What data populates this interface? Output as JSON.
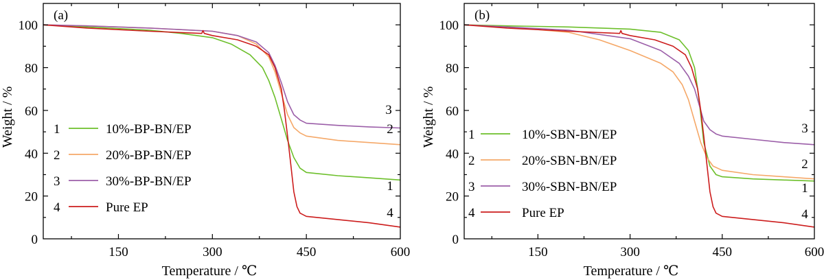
{
  "chart_data": [
    {
      "type": "line",
      "panel_label": "(a)",
      "xlabel": "Temperature / ℃",
      "ylabel": "Weight / %",
      "xlim": [
        30,
        600
      ],
      "ylim": [
        0,
        110
      ],
      "xticks": [
        150,
        300,
        450,
        600
      ],
      "yticks": [
        0,
        20,
        40,
        60,
        80,
        100
      ],
      "grid": false,
      "legend_position": "lower-left",
      "series": [
        {
          "number": "1",
          "name": "10%-BP-BN/EP",
          "color": "#6cbf2a",
          "end_label": "1",
          "x": [
            30,
            100,
            200,
            250,
            300,
            330,
            360,
            380,
            390,
            400,
            410,
            420,
            430,
            440,
            450,
            500,
            550,
            600
          ],
          "y": [
            100,
            99,
            97.5,
            96,
            94,
            91,
            86,
            80,
            74,
            66,
            56,
            46,
            38,
            33,
            31,
            29.5,
            28.5,
            27.5
          ]
        },
        {
          "number": "2",
          "name": "20%-BP-BN/EP",
          "color": "#f5a868",
          "end_label": "2",
          "x": [
            30,
            100,
            200,
            300,
            340,
            370,
            390,
            400,
            410,
            420,
            430,
            440,
            450,
            500,
            550,
            600
          ],
          "y": [
            100,
            99.5,
            98.5,
            97,
            95,
            91,
            85,
            78,
            68,
            58,
            52,
            49.5,
            48,
            46,
            45,
            44
          ]
        },
        {
          "number": "3",
          "name": "30%-BP-BN/EP",
          "color": "#9b5ea8",
          "end_label": "3",
          "x": [
            30,
            100,
            200,
            300,
            340,
            370,
            390,
            400,
            410,
            420,
            430,
            440,
            450,
            500,
            550,
            600
          ],
          "y": [
            100,
            99.5,
            98.5,
            97,
            95,
            92,
            87,
            81,
            73,
            64,
            58,
            55.5,
            54,
            53,
            52.3,
            51.8
          ]
        },
        {
          "number": "4",
          "name": "Pure EP",
          "color": "#cc1c1c",
          "end_label": "4",
          "x": [
            30,
            100,
            200,
            283,
            285,
            287,
            300,
            340,
            370,
            390,
            400,
            410,
            415,
            420,
            425,
            430,
            435,
            440,
            450,
            500,
            550,
            600
          ],
          "y": [
            100,
            98.5,
            97,
            96,
            97.3,
            96,
            95,
            93,
            90,
            86,
            80,
            70,
            60,
            48,
            35,
            22,
            15,
            12,
            10.5,
            9,
            7.5,
            5.5
          ]
        }
      ]
    },
    {
      "type": "line",
      "panel_label": "(b)",
      "xlabel": "Temperature / ℃",
      "ylabel": "Weight / %",
      "xlim": [
        30,
        600
      ],
      "ylim": [
        0,
        110
      ],
      "xticks": [
        150,
        300,
        450,
        600
      ],
      "yticks": [
        0,
        20,
        40,
        60,
        80,
        100
      ],
      "grid": false,
      "legend_position": "lower-left",
      "series": [
        {
          "number": "1",
          "name": "10%-SBN-BN/EP",
          "color": "#6cbf2a",
          "end_label": "1",
          "x": [
            30,
            100,
            200,
            300,
            350,
            380,
            395,
            405,
            410,
            415,
            420,
            430,
            440,
            450,
            500,
            550,
            600
          ],
          "y": [
            100,
            99.5,
            99,
            98,
            96.5,
            93,
            88,
            80,
            70,
            58,
            45,
            34,
            30,
            29,
            28,
            27.5,
            27
          ]
        },
        {
          "number": "2",
          "name": "20%-SBN-BN/EP",
          "color": "#f5a868",
          "end_label": "2",
          "x": [
            30,
            100,
            200,
            250,
            300,
            350,
            370,
            385,
            395,
            405,
            415,
            425,
            435,
            450,
            500,
            550,
            600
          ],
          "y": [
            100,
            99,
            96.5,
            93,
            88,
            82,
            78,
            72,
            65,
            55,
            45,
            38,
            34,
            32,
            30,
            29,
            28
          ]
        },
        {
          "number": "3",
          "name": "30%-SBN-BN/EP",
          "color": "#9b5ea8",
          "end_label": "3",
          "x": [
            30,
            100,
            200,
            300,
            350,
            380,
            395,
            405,
            410,
            415,
            420,
            430,
            440,
            450,
            500,
            550,
            600
          ],
          "y": [
            100,
            99,
            97.5,
            93.5,
            88,
            82,
            76,
            70,
            65,
            60,
            55,
            51,
            49,
            48,
            46.5,
            45,
            44
          ]
        },
        {
          "number": "4",
          "name": "Pure EP",
          "color": "#cc1c1c",
          "end_label": "4",
          "x": [
            30,
            100,
            200,
            283,
            285,
            287,
            300,
            340,
            370,
            390,
            400,
            410,
            415,
            420,
            425,
            430,
            435,
            440,
            450,
            500,
            550,
            600
          ],
          "y": [
            100,
            98.5,
            97,
            96,
            97.3,
            96,
            95,
            93,
            90,
            86,
            80,
            70,
            60,
            48,
            35,
            22,
            15,
            12,
            10.5,
            9,
            7.5,
            5.5
          ]
        }
      ]
    }
  ]
}
